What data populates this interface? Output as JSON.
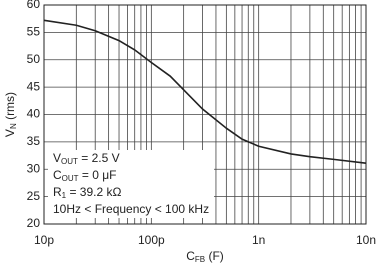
{
  "chart_data": {
    "type": "line",
    "x_label": [
      "C",
      "FB",
      " (F)"
    ],
    "y_label": [
      "V",
      "N",
      " (rms)"
    ],
    "annotation": [
      [
        "V",
        "OUT",
        " = 2.5 V"
      ],
      [
        "C",
        "OUT",
        " = 0 μF"
      ],
      [
        "R",
        "1",
        " = 39.2 kΩ"
      ],
      [
        "10Hz < Frequency < 100 kHz"
      ]
    ],
    "xscale": "log",
    "x": [
      1e-11,
      2e-11,
      3e-11,
      5e-11,
      7e-11,
      1e-10,
      1.5e-10,
      2e-10,
      3e-10,
      5e-10,
      7e-10,
      1e-09,
      2e-09,
      3e-09,
      5e-09,
      1e-08
    ],
    "series": [
      {
        "color": "#222222",
        "values": [
          57.2,
          56.3,
          55.3,
          53.5,
          51.8,
          49.5,
          47,
          44.5,
          41,
          37.5,
          35.5,
          34.2,
          32.8,
          32.3,
          31.8,
          31.1
        ]
      }
    ],
    "xlim": [
      1e-11,
      1e-08
    ],
    "ylim": [
      20,
      60
    ],
    "xticks": [
      {
        "value": 1e-11,
        "label": "10p"
      },
      {
        "value": 1e-10,
        "label": "100p"
      },
      {
        "value": 1e-09,
        "label": "1n"
      },
      {
        "value": 1e-08,
        "label": "10n"
      }
    ],
    "xminorticks": [
      2e-11,
      3e-11,
      4e-11,
      5e-11,
      6e-11,
      7e-11,
      8e-11,
      9e-11,
      2e-10,
      3e-10,
      4e-10,
      5e-10,
      6e-10,
      7e-10,
      8e-10,
      9e-10,
      2e-09,
      3e-09,
      4e-09,
      5e-09,
      6e-09,
      7e-09,
      8e-09,
      9e-09
    ],
    "yticks": [
      20,
      25,
      30,
      35,
      40,
      45,
      50,
      55,
      60
    ],
    "grid": true
  }
}
